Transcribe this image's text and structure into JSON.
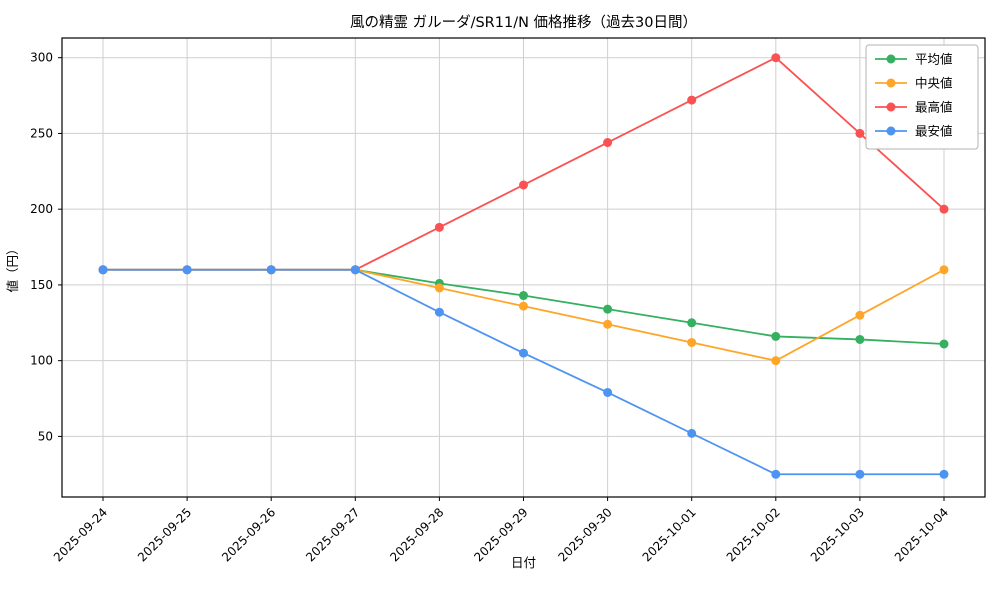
{
  "chart_data": {
    "type": "line",
    "title": "風の精霊 ガルーダ/SR11/N 価格推移（過去30日間）",
    "xlabel": "日付",
    "ylabel": "値（円）",
    "categories": [
      "2025-09-24",
      "2025-09-25",
      "2025-09-26",
      "2025-09-27",
      "2025-09-28",
      "2025-09-29",
      "2025-09-30",
      "2025-10-01",
      "2025-10-02",
      "2025-10-03",
      "2025-10-04"
    ],
    "series": [
      {
        "id": "average",
        "name": "平均値",
        "color": "#34b060",
        "values": [
          160,
          160,
          160,
          160,
          151,
          143,
          134,
          125,
          116,
          114,
          111
        ]
      },
      {
        "id": "median",
        "name": "中央値",
        "color": "#ffa629",
        "values": [
          160,
          160,
          160,
          160,
          148,
          136,
          124,
          112,
          100,
          130,
          160
        ]
      },
      {
        "id": "max",
        "name": "最高値",
        "color": "#fa5252",
        "values": [
          160,
          160,
          160,
          160,
          188,
          216,
          244,
          272,
          300,
          250,
          200
        ]
      },
      {
        "id": "min",
        "name": "最安値",
        "color": "#4d94f2",
        "values": [
          160,
          160,
          160,
          160,
          132,
          105,
          79,
          52,
          25,
          25,
          25
        ]
      }
    ],
    "yticks": [
      50,
      100,
      150,
      200,
      250,
      300
    ],
    "ylim": [
      10,
      313
    ],
    "grid": true,
    "grid_color": "#cfcfcf",
    "frame_color": "#000000",
    "legend_position": "upper right"
  }
}
